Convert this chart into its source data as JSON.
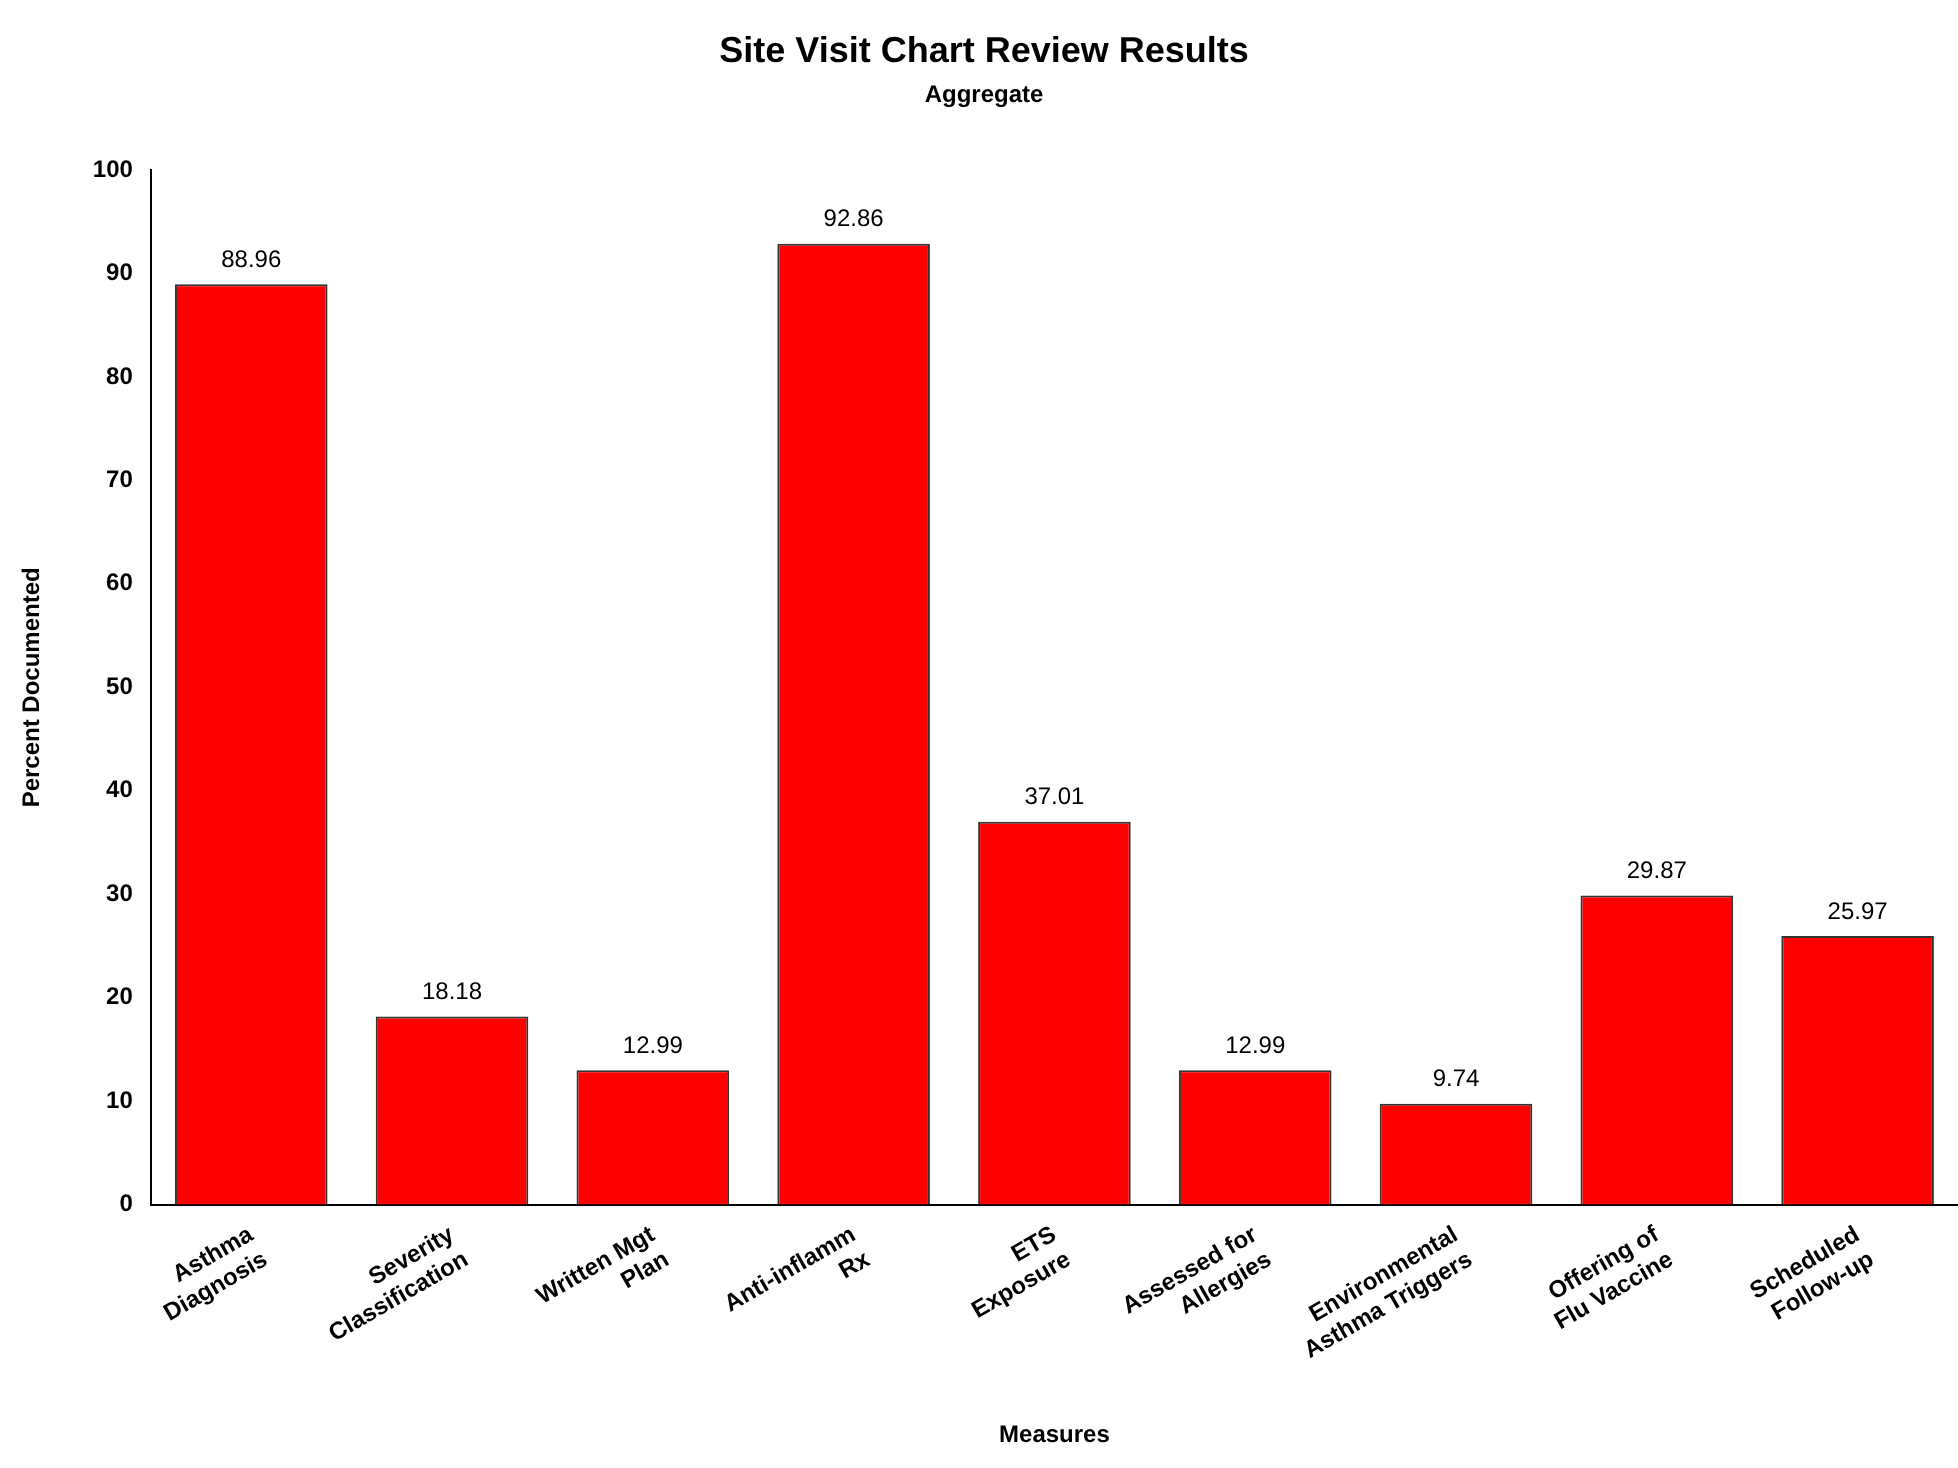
{
  "chart_data": {
    "type": "bar",
    "title": "Site Visit Chart Review Results",
    "subtitle": "Aggregate",
    "xlabel": "Measures",
    "ylabel": "Percent Documented",
    "categories": [
      "Asthma\nDiagnosis",
      "Severity\nClassification",
      "Written Mgt\nPlan",
      "Anti-inflamm\nRx",
      "ETS\nExposure",
      "Assessed for\nAllergies",
      "Environmental\nAsthma Triggers",
      "Offering of\nFlu Vaccine",
      "Scheduled\nFollow-up"
    ],
    "values": [
      88.96,
      18.18,
      12.99,
      92.86,
      37.01,
      12.99,
      9.74,
      29.87,
      25.97
    ],
    "color": "#ff0000",
    "ylim": [
      0,
      100
    ],
    "yticks": [
      0,
      10,
      20,
      30,
      40,
      50,
      60,
      70,
      80,
      90,
      100
    ],
    "grid": false,
    "data_labels": true,
    "legend": false
  }
}
